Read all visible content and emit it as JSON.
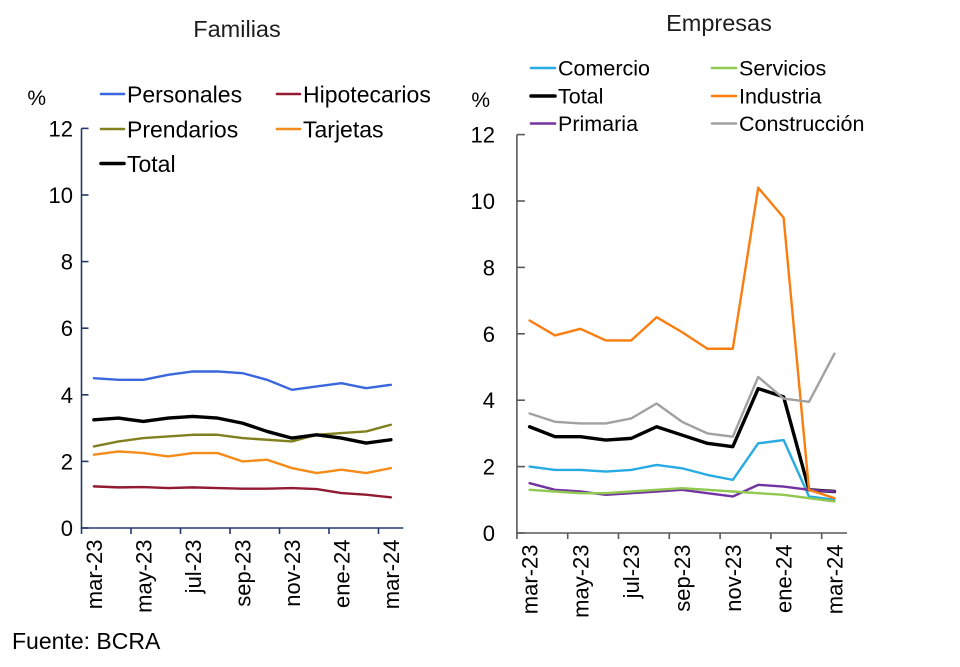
{
  "figure": {
    "source_note": "Fuente: BCRA",
    "background_color": "#ffffff"
  },
  "chart_data": [
    {
      "type": "line",
      "title": "Familias",
      "ylabel": "%",
      "xlabel": "",
      "ylim": [
        0,
        12
      ],
      "yticks": [
        0,
        2,
        4,
        6,
        8,
        10,
        12
      ],
      "grid": false,
      "legend_position": "top-left two-column",
      "axis_color": "#24396B",
      "categories": [
        "mar-23",
        "abr-23",
        "may-23",
        "jun-23",
        "jul-23",
        "ago-23",
        "sep-23",
        "oct-23",
        "nov-23",
        "dic-23",
        "ene-24",
        "feb-24",
        "mar-24"
      ],
      "x_tick_labels": [
        "mar-23",
        "may-23",
        "jul-23",
        "sep-23",
        "nov-23",
        "ene-24",
        "mar-24"
      ],
      "series": [
        {
          "name": "Personales",
          "color": "#3A67DE",
          "emphasis": false,
          "values": [
            4.5,
            4.45,
            4.45,
            4.6,
            4.7,
            4.7,
            4.65,
            4.45,
            4.15,
            4.25,
            4.35,
            4.2,
            4.3
          ]
        },
        {
          "name": "Hipotecarios",
          "color": "#921A33",
          "emphasis": false,
          "values": [
            1.25,
            1.22,
            1.23,
            1.2,
            1.22,
            1.2,
            1.18,
            1.18,
            1.2,
            1.17,
            1.05,
            1.0,
            0.92
          ]
        },
        {
          "name": "Prendarios",
          "color": "#80811E",
          "emphasis": false,
          "values": [
            2.45,
            2.6,
            2.7,
            2.75,
            2.8,
            2.8,
            2.7,
            2.65,
            2.6,
            2.8,
            2.85,
            2.9,
            3.1
          ]
        },
        {
          "name": "Tarjetas",
          "color": "#F58C19",
          "emphasis": false,
          "values": [
            2.2,
            2.3,
            2.25,
            2.15,
            2.25,
            2.25,
            2.0,
            2.05,
            1.8,
            1.65,
            1.75,
            1.65,
            1.8
          ]
        },
        {
          "name": "Total",
          "color": "#000000",
          "emphasis": true,
          "values": [
            3.25,
            3.3,
            3.2,
            3.3,
            3.35,
            3.3,
            3.15,
            2.9,
            2.7,
            2.8,
            2.7,
            2.55,
            2.65
          ]
        }
      ]
    },
    {
      "type": "line",
      "title": "Empresas",
      "ylabel": "%",
      "xlabel": "",
      "ylim": [
        0,
        12
      ],
      "yticks": [
        0,
        2,
        4,
        6,
        8,
        10,
        12
      ],
      "grid": false,
      "legend_position": "top-left two-column",
      "axis_color": "#595959",
      "categories": [
        "mar-23",
        "abr-23",
        "may-23",
        "jun-23",
        "jul-23",
        "ago-23",
        "sep-23",
        "oct-23",
        "nov-23",
        "dic-23",
        "ene-24",
        "feb-24",
        "mar-24"
      ],
      "x_tick_labels": [
        "mar-23",
        "may-23",
        "jul-23",
        "sep-23",
        "nov-23",
        "ene-24",
        "mar-24"
      ],
      "series": [
        {
          "name": "Comercio",
          "color": "#28ABE2",
          "emphasis": false,
          "values": [
            2.0,
            1.9,
            1.9,
            1.85,
            1.9,
            2.05,
            1.95,
            1.75,
            1.6,
            2.7,
            2.8,
            1.1,
            1.0
          ]
        },
        {
          "name": "Total",
          "color": "#000000",
          "emphasis": true,
          "values": [
            3.2,
            2.9,
            2.9,
            2.8,
            2.85,
            3.2,
            2.95,
            2.7,
            2.6,
            4.35,
            4.1,
            1.3,
            1.25
          ]
        },
        {
          "name": "Primaria",
          "color": "#7233A1",
          "emphasis": false,
          "values": [
            1.5,
            1.3,
            1.25,
            1.15,
            1.2,
            1.25,
            1.3,
            1.2,
            1.1,
            1.45,
            1.4,
            1.3,
            1.25
          ]
        },
        {
          "name": "Servicios",
          "color": "#91C850",
          "emphasis": false,
          "values": [
            1.3,
            1.25,
            1.2,
            1.2,
            1.25,
            1.3,
            1.35,
            1.3,
            1.25,
            1.2,
            1.15,
            1.05,
            0.95
          ]
        },
        {
          "name": "Industria",
          "color": "#FA7D0F",
          "emphasis": false,
          "values": [
            6.4,
            5.95,
            6.15,
            5.8,
            5.8,
            6.5,
            6.05,
            5.55,
            5.55,
            10.4,
            9.5,
            1.3,
            1.05
          ]
        },
        {
          "name": "Construcción",
          "color": "#A1A1A1",
          "emphasis": false,
          "values": [
            3.6,
            3.35,
            3.3,
            3.3,
            3.45,
            3.9,
            3.35,
            3.0,
            2.9,
            4.7,
            4.05,
            3.95,
            5.4
          ]
        }
      ]
    }
  ]
}
